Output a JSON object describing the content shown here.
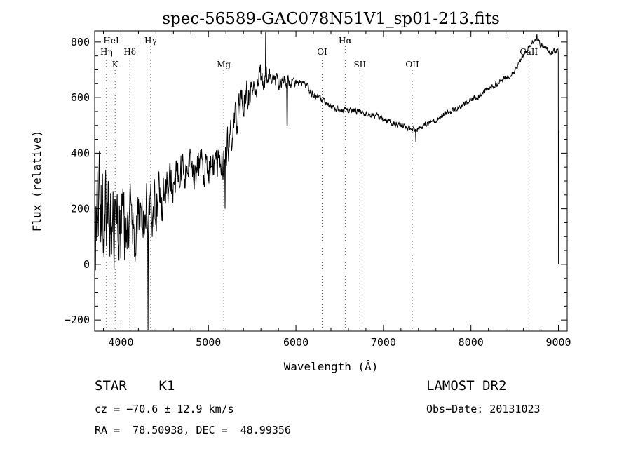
{
  "chart_data": {
    "type": "line",
    "title": "spec-56589-GAC078N51V1_sp01-213.fits",
    "xlabel": "Wavelength (Å)",
    "ylabel": "Flux (relative)",
    "xlim": [
      3700,
      9100
    ],
    "ylim": [
      -240,
      840
    ],
    "x_ticks": [
      4000,
      5000,
      6000,
      7000,
      8000,
      9000
    ],
    "y_ticks": [
      -200,
      0,
      200,
      400,
      600,
      800
    ],
    "x_tick_labels": [
      "4000",
      "5000",
      "6000",
      "7000",
      "8000",
      "9000"
    ],
    "y_tick_labels": [
      "−200",
      "0",
      "200",
      "400",
      "600",
      "800"
    ],
    "grid": false,
    "line_color": "#000000",
    "spectrum_anchors": [
      [
        3700,
        150
      ],
      [
        3750,
        250
      ],
      [
        3800,
        200
      ],
      [
        3850,
        180
      ],
      [
        3900,
        160
      ],
      [
        4000,
        150
      ],
      [
        4100,
        140
      ],
      [
        4200,
        140
      ],
      [
        4300,
        175
      ],
      [
        4400,
        220
      ],
      [
        4500,
        265
      ],
      [
        4600,
        290
      ],
      [
        4700,
        320
      ],
      [
        4800,
        345
      ],
      [
        4900,
        350
      ],
      [
        5000,
        350
      ],
      [
        5100,
        340
      ],
      [
        5200,
        400
      ],
      [
        5300,
        510
      ],
      [
        5400,
        585
      ],
      [
        5500,
        620
      ],
      [
        5600,
        665
      ],
      [
        5700,
        670
      ],
      [
        5800,
        660
      ],
      [
        5900,
        660
      ],
      [
        6000,
        650
      ],
      [
        6100,
        645
      ],
      [
        6200,
        610
      ],
      [
        6300,
        590
      ],
      [
        6400,
        565
      ],
      [
        6500,
        555
      ],
      [
        6600,
        555
      ],
      [
        6700,
        550
      ],
      [
        6800,
        540
      ],
      [
        6900,
        535
      ],
      [
        7000,
        520
      ],
      [
        7100,
        510
      ],
      [
        7200,
        500
      ],
      [
        7300,
        485
      ],
      [
        7400,
        490
      ],
      [
        7500,
        505
      ],
      [
        7600,
        520
      ],
      [
        7700,
        540
      ],
      [
        7800,
        555
      ],
      [
        7900,
        570
      ],
      [
        8000,
        590
      ],
      [
        8100,
        610
      ],
      [
        8200,
        630
      ],
      [
        8300,
        650
      ],
      [
        8400,
        670
      ],
      [
        8500,
        700
      ],
      [
        8600,
        750
      ],
      [
        8700,
        800
      ],
      [
        8750,
        815
      ],
      [
        8800,
        790
      ],
      [
        8900,
        765
      ],
      [
        9000,
        770
      ]
    ],
    "spectrum_noise": [
      [
        3700,
        210
      ],
      [
        3850,
        190
      ],
      [
        4000,
        170
      ],
      [
        4200,
        140
      ],
      [
        4400,
        110
      ],
      [
        4700,
        80
      ],
      [
        5000,
        70
      ],
      [
        5200,
        75
      ],
      [
        5500,
        60
      ],
      [
        5700,
        40
      ],
      [
        6000,
        18
      ],
      [
        6500,
        12
      ],
      [
        7300,
        12
      ],
      [
        8000,
        12
      ],
      [
        9000,
        12
      ]
    ],
    "spectrum_features": [
      [
        4310,
        -240
      ],
      [
        5190,
        200
      ],
      [
        5655,
        840
      ],
      [
        5660,
        710
      ],
      [
        5900,
        500
      ],
      [
        7370,
        440
      ],
      [
        8755,
        830
      ]
    ],
    "spectrum_edge_drop": [
      9000,
      0
    ],
    "lines": [
      {
        "label": "HeI",
        "wavelength": 3889,
        "tier": 0
      },
      {
        "label": "Hγ",
        "wavelength": 4340,
        "tier": 0
      },
      {
        "label": "Hα",
        "wavelength": 6563,
        "tier": 0
      },
      {
        "label": "Hη",
        "wavelength": 3835,
        "tier": 1
      },
      {
        "label": "Hδ",
        "wavelength": 4102,
        "tier": 1
      },
      {
        "label": "OI",
        "wavelength": 6300,
        "tier": 1
      },
      {
        "label": "CaII",
        "wavelength": 8662,
        "tier": 1
      },
      {
        "label": "K",
        "wavelength": 3934,
        "tier": 2
      },
      {
        "label": "Mg",
        "wavelength": 5175,
        "tier": 2
      },
      {
        "label": "OII",
        "wavelength": 7330,
        "tier": 2
      },
      {
        "label": "SII",
        "wavelength": 6731,
        "tier": 2
      }
    ]
  },
  "info": {
    "class_line": "STAR    K1",
    "survey": "LAMOST DR2",
    "cz": "cz = −70.6 ± 12.9 km/s",
    "obs_date": "Obs−Date: 20131023",
    "radec": "RA =  78.50938, DEC =  48.99356"
  }
}
